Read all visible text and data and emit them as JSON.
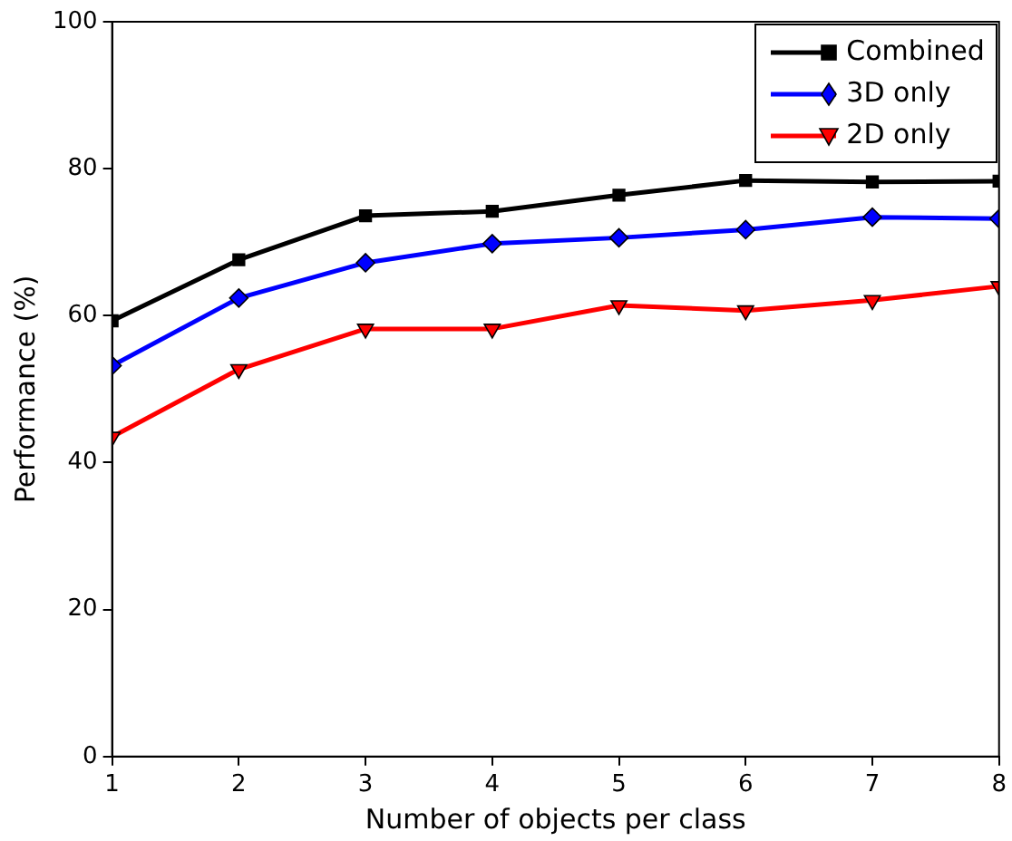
{
  "chart_data": {
    "type": "line",
    "xlabel": "Number of objects per class",
    "ylabel": "Performance (%)",
    "x": [
      1,
      2,
      3,
      4,
      5,
      6,
      7,
      8
    ],
    "xlim": [
      1,
      8
    ],
    "xticks": [
      1,
      2,
      3,
      4,
      5,
      6,
      7,
      8
    ],
    "ylim": [
      0,
      100
    ],
    "yticks": [
      0,
      20,
      40,
      60,
      80,
      100
    ],
    "grid": false,
    "legend": "top right",
    "series": [
      {
        "name": "Combined",
        "color": "#000000",
        "marker": "square",
        "values": [
          59.3,
          67.6,
          73.6,
          74.2,
          76.4,
          78.4,
          78.2,
          78.3
        ]
      },
      {
        "name": "3D only",
        "color": "#0000ff",
        "marker": "diamond",
        "values": [
          53.2,
          62.4,
          67.2,
          69.8,
          70.6,
          71.7,
          73.4,
          73.2
        ]
      },
      {
        "name": "2D only",
        "color": "#ff0000",
        "marker": "triangle",
        "values": [
          43.5,
          52.7,
          58.2,
          58.2,
          61.4,
          60.7,
          62.1,
          64.0
        ]
      }
    ]
  }
}
